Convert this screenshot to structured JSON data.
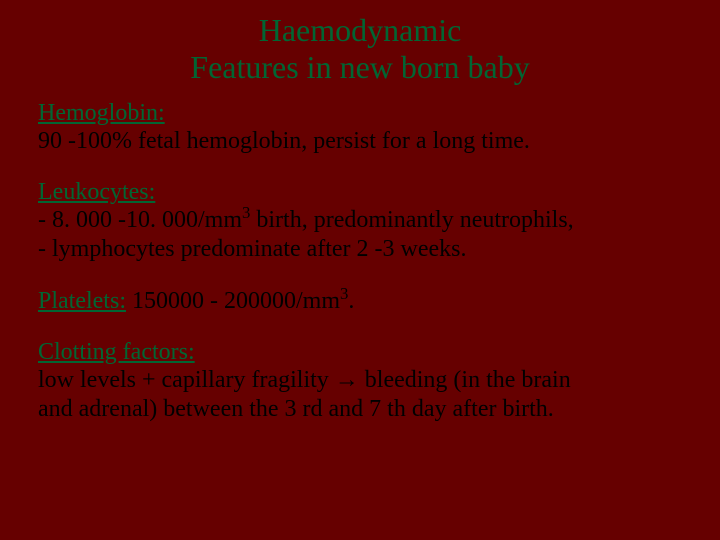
{
  "colors": {
    "background": "#660000",
    "heading": "#006633",
    "body": "#000000"
  },
  "typography": {
    "font_family": "Times New Roman",
    "title_fontsize": 32,
    "body_fontsize": 24
  },
  "title": {
    "line1": "Haemodynamic",
    "line2": "Features in new born baby"
  },
  "sections": {
    "hemoglobin": {
      "heading": "Hemoglobin:",
      "line1": " 90 -100% fetal hemoglobin, persist for a long time."
    },
    "leukocytes": {
      "heading": "Leukocytes:",
      "line1_a": "- 8. 000 -10. 000/mm",
      "line1_sup": "3",
      "line1_b": " birth, predominantly neutrophils,",
      "line2": "- lymphocytes predominate after 2 -3 weeks."
    },
    "platelets": {
      "heading": "Platelets:",
      "value_a": " 150000 - 200000/mm",
      "value_sup": "3",
      "value_b": "."
    },
    "clotting": {
      "heading": "Clotting factors:",
      "line1": "low levels + capillary fragility → bleeding (in the brain",
      "line2": "and adrenal) between the 3 rd and 7 th day after birth."
    }
  }
}
